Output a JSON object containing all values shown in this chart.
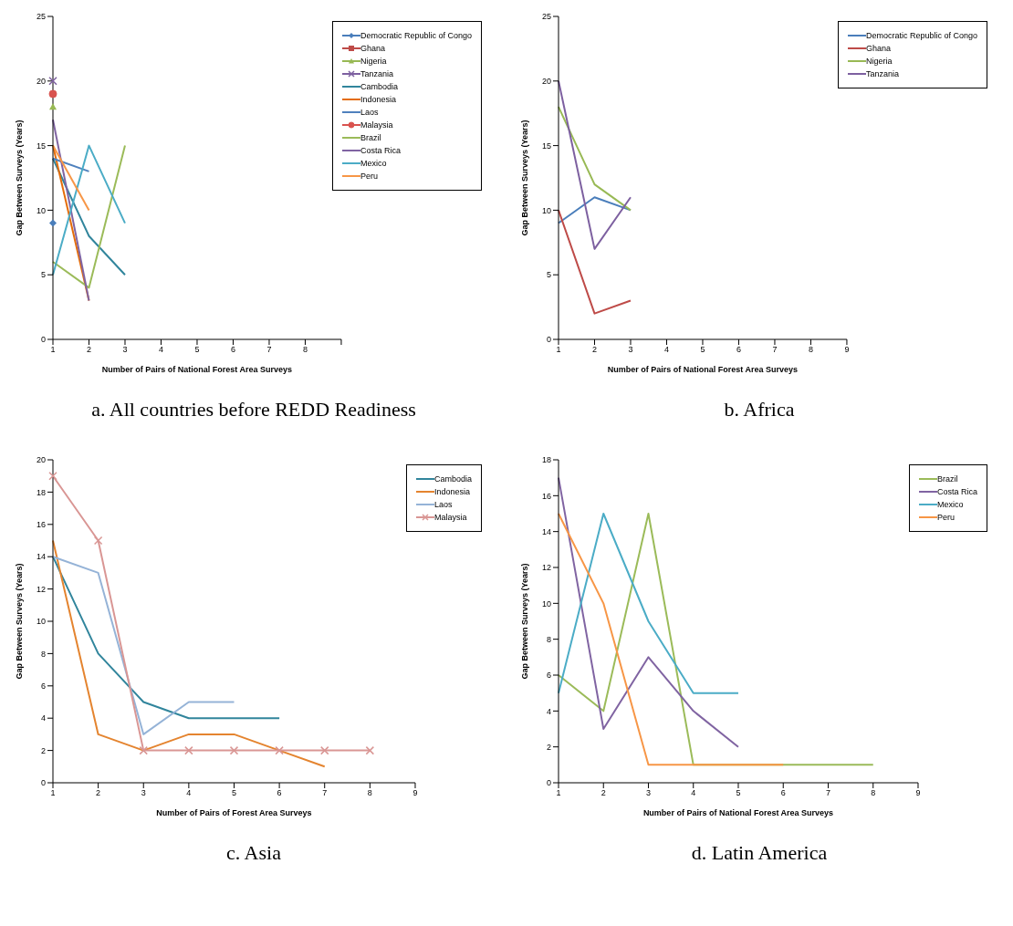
{
  "chart_data": [
    {
      "type": "line",
      "title": "a. All countries before REDD Readiness",
      "xlabel": "Number of Pairs of National Forest Area Surveys",
      "ylabel": "Gap Between Surveys (Years)",
      "categories": [
        "1",
        "2",
        "3",
        "4",
        "5",
        "6",
        "7",
        "8",
        null
      ],
      "ylim": [
        0,
        25
      ],
      "yticks": [
        0,
        5,
        10,
        15,
        20,
        25
      ],
      "grid": false,
      "legend": "top right",
      "series": [
        {
          "name": "Democratic Republic of Congo",
          "color": "#4a7ebb",
          "marker": "diamond",
          "values": [
            9,
            null,
            null,
            null,
            null,
            null,
            null,
            null,
            null
          ]
        },
        {
          "name": "Ghana",
          "color": "#be4b48",
          "marker": "square",
          "values": [
            null,
            null,
            null,
            null,
            null,
            null,
            null,
            null,
            null
          ]
        },
        {
          "name": "Nigeria",
          "color": "#98b954",
          "marker": "triangle",
          "values": [
            18,
            null,
            null,
            null,
            null,
            null,
            null,
            null,
            null
          ]
        },
        {
          "name": "Tanzania",
          "color": "#7d60a0",
          "marker": "cross",
          "values": [
            20,
            null,
            null,
            null,
            null,
            null,
            null,
            null,
            null
          ]
        },
        {
          "name": "Cambodia",
          "color": "#31859c",
          "values": [
            14,
            8,
            5,
            null,
            null,
            null,
            null,
            null,
            null
          ]
        },
        {
          "name": "Indonesia",
          "color": "#e46c0a",
          "values": [
            15,
            3,
            null,
            null,
            null,
            null,
            null,
            null,
            null
          ]
        },
        {
          "name": "Laos",
          "color": "#4f81bd",
          "values": [
            14,
            13,
            null,
            null,
            null,
            null,
            null,
            null,
            null
          ]
        },
        {
          "name": "Malaysia",
          "color": "#d9534f",
          "marker": "circle",
          "values": [
            19,
            null,
            null,
            null,
            null,
            null,
            null,
            null,
            null
          ]
        },
        {
          "name": "Brazil",
          "color": "#9bbb59",
          "values": [
            6,
            4,
            15,
            null,
            null,
            null,
            null,
            null,
            null
          ]
        },
        {
          "name": "Costa Rica",
          "color": "#8064a2",
          "values": [
            17,
            3,
            null,
            null,
            null,
            null,
            null,
            null,
            null
          ]
        },
        {
          "name": "Mexico",
          "color": "#4bacc6",
          "values": [
            5,
            15,
            9,
            null,
            null,
            null,
            null,
            null,
            null
          ]
        },
        {
          "name": "Peru",
          "color": "#f79646",
          "values": [
            15,
            10,
            null,
            null,
            null,
            null,
            null,
            null,
            null
          ]
        }
      ]
    },
    {
      "type": "line",
      "title": "b. Africa",
      "xlabel": "Number of Pairs of National Forest Area Surveys",
      "ylabel": "Gap Between Surveys (Years)",
      "categories": [
        "1",
        "2",
        "3",
        "4",
        "5",
        "6",
        "7",
        "8",
        "9"
      ],
      "ylim": [
        0,
        25
      ],
      "yticks": [
        0,
        5,
        10,
        15,
        20,
        25
      ],
      "grid": false,
      "legend": "top right",
      "series": [
        {
          "name": "Democratic Republic of Congo",
          "color": "#4a7ebb",
          "values": [
            9,
            11,
            10,
            null,
            null,
            null,
            null,
            null,
            null
          ]
        },
        {
          "name": "Ghana",
          "color": "#be4b48",
          "values": [
            10,
            2,
            3,
            null,
            null,
            null,
            null,
            null,
            null
          ]
        },
        {
          "name": "Nigeria",
          "color": "#98b954",
          "values": [
            18,
            12,
            10,
            null,
            null,
            null,
            null,
            null,
            null
          ]
        },
        {
          "name": "Tanzania",
          "color": "#7d60a0",
          "values": [
            20,
            7,
            11,
            null,
            null,
            null,
            null,
            null,
            null
          ]
        }
      ]
    },
    {
      "type": "line",
      "title": "c. Asia",
      "xlabel": "Number of Pairs of Forest Area Surveys",
      "ylabel": "Gap Between Surveys (Years)",
      "categories": [
        "1",
        "2",
        "3",
        "4",
        "5",
        "6",
        "7",
        "8",
        "9"
      ],
      "ylim": [
        0,
        20
      ],
      "yticks": [
        0,
        2,
        4,
        6,
        8,
        10,
        12,
        14,
        16,
        18,
        20
      ],
      "grid": false,
      "legend": "top right",
      "series": [
        {
          "name": "Cambodia",
          "color": "#31859c",
          "values": [
            14,
            8,
            5,
            4,
            4,
            4,
            null,
            null,
            null
          ]
        },
        {
          "name": "Indonesia",
          "color": "#e4842f",
          "values": [
            15,
            3,
            2,
            3,
            3,
            2,
            1,
            null,
            null
          ]
        },
        {
          "name": "Laos",
          "color": "#95b3d7",
          "values": [
            14,
            13,
            3,
            5,
            5,
            null,
            null,
            null,
            null
          ]
        },
        {
          "name": "Malaysia",
          "color": "#d99694",
          "marker": "cross",
          "values": [
            19,
            15,
            2,
            2,
            2,
            2,
            2,
            2,
            null
          ]
        }
      ]
    },
    {
      "type": "line",
      "title": "d. Latin America",
      "xlabel": "Number of Pairs of National Forest Area Surveys",
      "ylabel": "Gap Between Surveys (Years)",
      "categories": [
        "1",
        "2",
        "3",
        "4",
        "5",
        "6",
        "7",
        "8",
        "9"
      ],
      "ylim": [
        0,
        18
      ],
      "yticks": [
        0,
        2,
        4,
        6,
        8,
        10,
        12,
        14,
        16,
        18
      ],
      "grid": false,
      "legend": "top right",
      "series": [
        {
          "name": "Brazil",
          "color": "#9bbb59",
          "values": [
            6,
            4,
            15,
            1,
            1,
            1,
            1,
            1,
            null
          ]
        },
        {
          "name": "Costa Rica",
          "color": "#8064a2",
          "values": [
            17,
            3,
            7,
            4,
            2,
            null,
            null,
            null,
            null
          ]
        },
        {
          "name": "Mexico",
          "color": "#4bacc6",
          "values": [
            5,
            15,
            9,
            5,
            5,
            null,
            null,
            null,
            null
          ]
        },
        {
          "name": "Peru",
          "color": "#f79646",
          "values": [
            15,
            10,
            1,
            1,
            1,
            1,
            null,
            null,
            null
          ]
        }
      ]
    }
  ]
}
